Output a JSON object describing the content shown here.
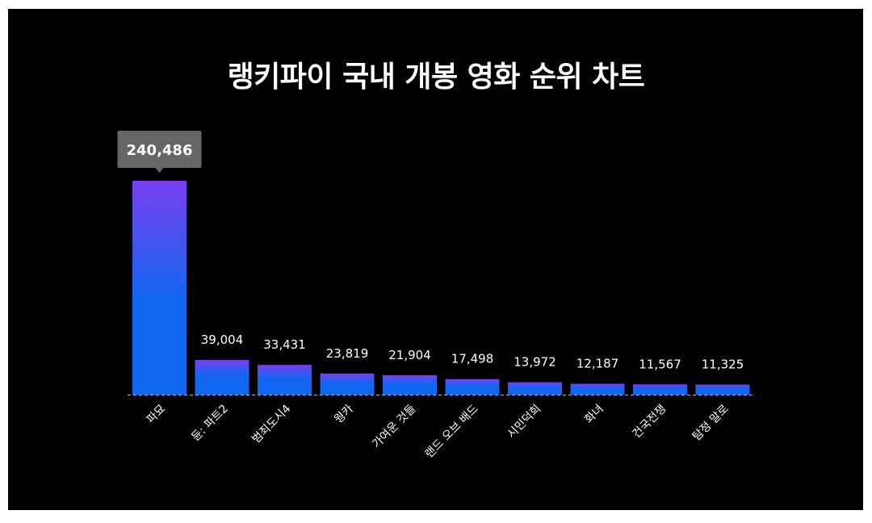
{
  "chart_data": {
    "type": "bar",
    "title": "랭키파이 국내 개봉 영화 순위 차트",
    "categories": [
      "파묘",
      "듄: 파트2",
      "범죄도시4",
      "웡카",
      "가여운 것들",
      "랜드 오브 배드",
      "시민덕희",
      "화녀",
      "건국전쟁",
      "탐정 말로"
    ],
    "values": [
      240486,
      39004,
      33431,
      23819,
      21904,
      17498,
      13972,
      12187,
      11567,
      11325
    ],
    "value_labels": [
      "240,486",
      "39,004",
      "33,431",
      "23,819",
      "21,904",
      "17,498",
      "13,972",
      "12,187",
      "11,567",
      "11,325"
    ],
    "highlight_index": 0,
    "ylim": [
      0,
      240486
    ],
    "grid": false,
    "legend": "none"
  },
  "colors": {
    "background": "#000000",
    "bar_top": "#7a3ff0",
    "bar_bottom": "#1166f0",
    "tooltip": "#666666",
    "baseline": "#7aa8ff"
  }
}
